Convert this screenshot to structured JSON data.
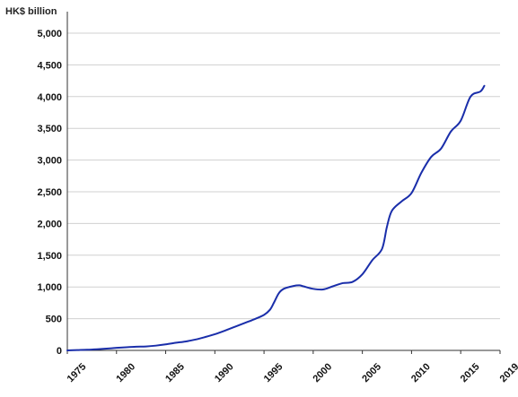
{
  "chart_data": {
    "type": "line",
    "title": "",
    "xlabel": "",
    "ylabel": "HK$ billion",
    "xlim": [
      1975,
      2019
    ],
    "ylim": [
      0,
      5000
    ],
    "grid": "horizontal",
    "y_ticks": [
      {
        "value": 0,
        "label": "0"
      },
      {
        "value": 500,
        "label": "500"
      },
      {
        "value": 1000,
        "label": "1,000"
      },
      {
        "value": 1500,
        "label": "1,500"
      },
      {
        "value": 2000,
        "label": "2,000"
      },
      {
        "value": 2500,
        "label": "2,500"
      },
      {
        "value": 3000,
        "label": "3,000"
      },
      {
        "value": 3500,
        "label": "3,500"
      },
      {
        "value": 4000,
        "label": "4,000"
      },
      {
        "value": 4500,
        "label": "4,500"
      },
      {
        "value": 5000,
        "label": "5,000"
      }
    ],
    "x_ticks": [
      {
        "value": 1975,
        "label": "1975"
      },
      {
        "value": 1980,
        "label": "1980"
      },
      {
        "value": 1985,
        "label": "1985"
      },
      {
        "value": 1990,
        "label": "1990"
      },
      {
        "value": 1995,
        "label": "1995"
      },
      {
        "value": 2000,
        "label": "2000"
      },
      {
        "value": 2005,
        "label": "2005"
      },
      {
        "value": 2010,
        "label": "2010"
      },
      {
        "value": 2015,
        "label": "2015"
      },
      {
        "value": 2019,
        "label": "2019"
      }
    ],
    "series": [
      {
        "color": "#1a2eaa",
        "points": [
          [
            1975,
            0
          ],
          [
            1976,
            5
          ],
          [
            1977,
            10
          ],
          [
            1978,
            18
          ],
          [
            1979,
            28
          ],
          [
            1980,
            40
          ],
          [
            1981,
            50
          ],
          [
            1982,
            58
          ],
          [
            1983,
            62
          ],
          [
            1984,
            75
          ],
          [
            1985,
            95
          ],
          [
            1986,
            120
          ],
          [
            1987,
            140
          ],
          [
            1988,
            170
          ],
          [
            1989,
            210
          ],
          [
            1990,
            255
          ],
          [
            1991,
            310
          ],
          [
            1992,
            370
          ],
          [
            1993,
            430
          ],
          [
            1994,
            490
          ],
          [
            1995,
            560
          ],
          [
            1995.6,
            640
          ],
          [
            1996,
            750
          ],
          [
            1996.5,
            900
          ],
          [
            1997,
            970
          ],
          [
            1998,
            1015
          ],
          [
            1998.6,
            1025
          ],
          [
            1999,
            1010
          ],
          [
            2000,
            970
          ],
          [
            2001,
            960
          ],
          [
            2002,
            1010
          ],
          [
            2003,
            1060
          ],
          [
            2004,
            1080
          ],
          [
            2005,
            1200
          ],
          [
            2006,
            1420
          ],
          [
            2007,
            1600
          ],
          [
            2007.5,
            1950
          ],
          [
            2008,
            2200
          ],
          [
            2009,
            2350
          ],
          [
            2010,
            2480
          ],
          [
            2011,
            2800
          ],
          [
            2012,
            3050
          ],
          [
            2013,
            3180
          ],
          [
            2014,
            3450
          ],
          [
            2015,
            3620
          ],
          [
            2016,
            4000
          ],
          [
            2017,
            4080
          ],
          [
            2017.4,
            4170
          ]
        ]
      }
    ]
  }
}
